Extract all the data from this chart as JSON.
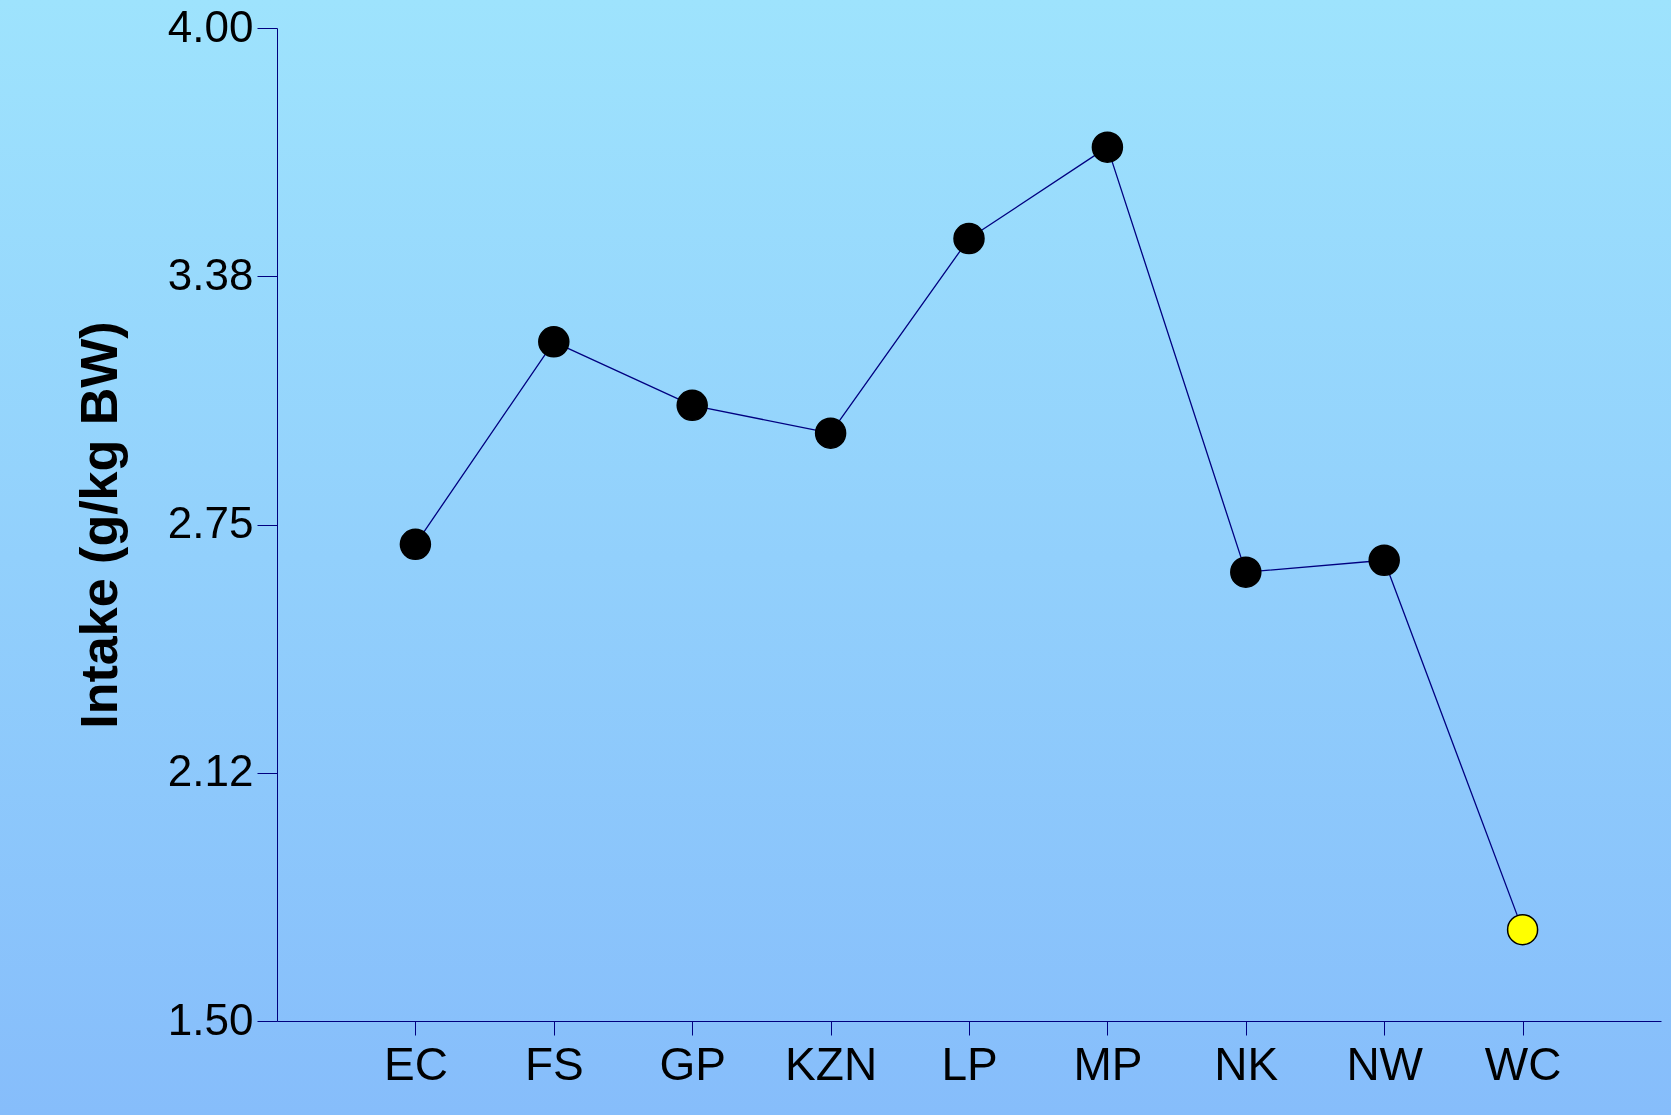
{
  "chart_data": {
    "type": "line",
    "ylabel": "Intake  (g/kg BW)",
    "categories": [
      "EC",
      "FS",
      "GP",
      "KZN",
      "LP",
      "MP",
      "NK",
      "NW",
      "WC"
    ],
    "values": [
      2.7,
      3.21,
      3.05,
      2.98,
      3.47,
      3.7,
      2.63,
      2.66,
      1.73
    ],
    "colors": [
      "#000000",
      "#000000",
      "#000000",
      "#000000",
      "#000000",
      "#000000",
      "#000000",
      "#000000",
      "#ffff00"
    ],
    "marker": "circle",
    "line_style": "solid",
    "ylim": [
      1.5,
      4.0
    ],
    "yticks": [
      {
        "value": 1.5,
        "label": "1.50"
      },
      {
        "value": 2.125,
        "label": "2.12"
      },
      2.75,
      {
        "value": 3.375,
        "label": "3.38"
      },
      {
        "value": 4.0,
        "label": "4.00"
      }
    ]
  }
}
